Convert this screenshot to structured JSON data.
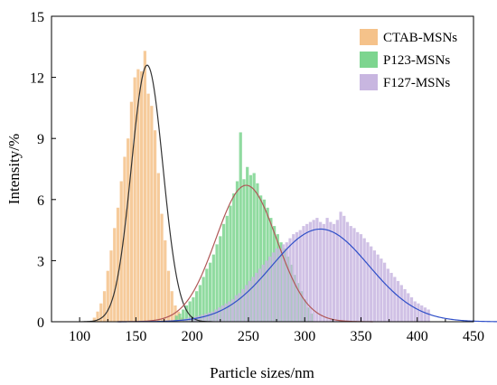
{
  "chart_data": {
    "type": "bar",
    "title": "",
    "xlabel": "Particle sizes/nm",
    "ylabel": "Intensity/%",
    "xlim": [
      75,
      450
    ],
    "ylim": [
      0,
      15
    ],
    "xticks": [
      100,
      150,
      200,
      250,
      300,
      350,
      400,
      450
    ],
    "yticks": [
      0,
      3,
      6,
      9,
      12,
      15
    ],
    "grid": false,
    "legend_position": "top-right",
    "bar_width": 2.6,
    "series": [
      {
        "name": "CTAB-MSNs",
        "color": "#f5c28a",
        "fit_color": "#333333",
        "fit": {
          "amplitude": 12.6,
          "center": 160,
          "sigma": 14
        },
        "x": [
          113,
          116,
          119,
          122,
          125,
          128,
          131,
          134,
          137,
          140,
          143,
          146,
          149,
          152,
          155,
          158,
          161,
          164,
          167,
          170,
          173,
          176,
          179,
          182,
          185,
          188,
          191
        ],
        "values": [
          0.2,
          0.5,
          0.9,
          1.5,
          2.5,
          3.5,
          4.6,
          5.6,
          6.9,
          8.1,
          9.0,
          10.8,
          12.0,
          12.4,
          12.3,
          13.3,
          11.2,
          10.6,
          9.4,
          7.3,
          5.3,
          4.0,
          2.5,
          1.5,
          0.8,
          0.5,
          0.2
        ]
      },
      {
        "name": "P123-MSNs",
        "color": "#7dd58f",
        "fit_color": "#b05858",
        "fit": {
          "amplitude": 6.7,
          "center": 248,
          "sigma": 27
        },
        "x": [
          186,
          189,
          192,
          195,
          198,
          201,
          204,
          207,
          210,
          213,
          216,
          219,
          222,
          225,
          228,
          231,
          234,
          237,
          240,
          243,
          246,
          249,
          252,
          255,
          258,
          261,
          264,
          267,
          270,
          273,
          276,
          279,
          282,
          285,
          288,
          291,
          294,
          297,
          300,
          303,
          306
        ],
        "values": [
          0.3,
          0.4,
          0.6,
          0.8,
          1.0,
          1.2,
          1.5,
          1.8,
          2.2,
          2.6,
          2.9,
          3.3,
          3.8,
          4.2,
          4.8,
          5.2,
          5.7,
          6.3,
          6.9,
          9.3,
          7.0,
          7.6,
          7.2,
          7.3,
          6.8,
          6.2,
          6.0,
          5.6,
          5.1,
          4.7,
          4.3,
          3.9,
          3.6,
          3.2,
          2.8,
          2.3,
          1.9,
          1.5,
          1.1,
          0.7,
          0.4
        ]
      },
      {
        "name": "F127-MSNs",
        "color": "#c8b6e0",
        "fit_color": "#2f4fc8",
        "fit": {
          "amplitude": 4.55,
          "center": 314,
          "sigma": 43
        },
        "x": [
          188,
          191,
          194,
          197,
          200,
          203,
          206,
          209,
          212,
          215,
          218,
          221,
          224,
          227,
          230,
          233,
          236,
          239,
          242,
          245,
          248,
          251,
          254,
          257,
          260,
          263,
          266,
          269,
          272,
          275,
          278,
          281,
          284,
          287,
          290,
          293,
          296,
          299,
          302,
          305,
          308,
          311,
          314,
          317,
          320,
          323,
          326,
          329,
          332,
          335,
          338,
          341,
          344,
          347,
          350,
          353,
          356,
          359,
          362,
          365,
          368,
          371,
          374,
          377,
          380,
          383,
          386,
          389,
          392,
          395,
          398,
          401,
          404,
          407,
          410
        ],
        "values": [
          0.1,
          0.1,
          0.15,
          0.2,
          0.2,
          0.25,
          0.3,
          0.35,
          0.4,
          0.45,
          0.5,
          0.6,
          0.7,
          0.8,
          0.9,
          1.0,
          1.1,
          1.3,
          1.4,
          1.6,
          1.8,
          2.0,
          2.2,
          2.4,
          2.6,
          2.8,
          3.0,
          3.2,
          3.4,
          3.6,
          3.6,
          3.8,
          3.9,
          4.1,
          4.3,
          4.4,
          4.5,
          4.7,
          4.8,
          4.9,
          5.0,
          5.1,
          4.9,
          4.8,
          5.1,
          4.9,
          4.8,
          5.0,
          5.4,
          5.2,
          4.9,
          4.7,
          4.6,
          4.4,
          4.3,
          4.1,
          3.9,
          3.7,
          3.5,
          3.3,
          3.1,
          2.9,
          2.6,
          2.4,
          2.2,
          2.0,
          1.8,
          1.6,
          1.4,
          1.2,
          1.0,
          0.9,
          0.8,
          0.7,
          0.6
        ]
      }
    ]
  }
}
